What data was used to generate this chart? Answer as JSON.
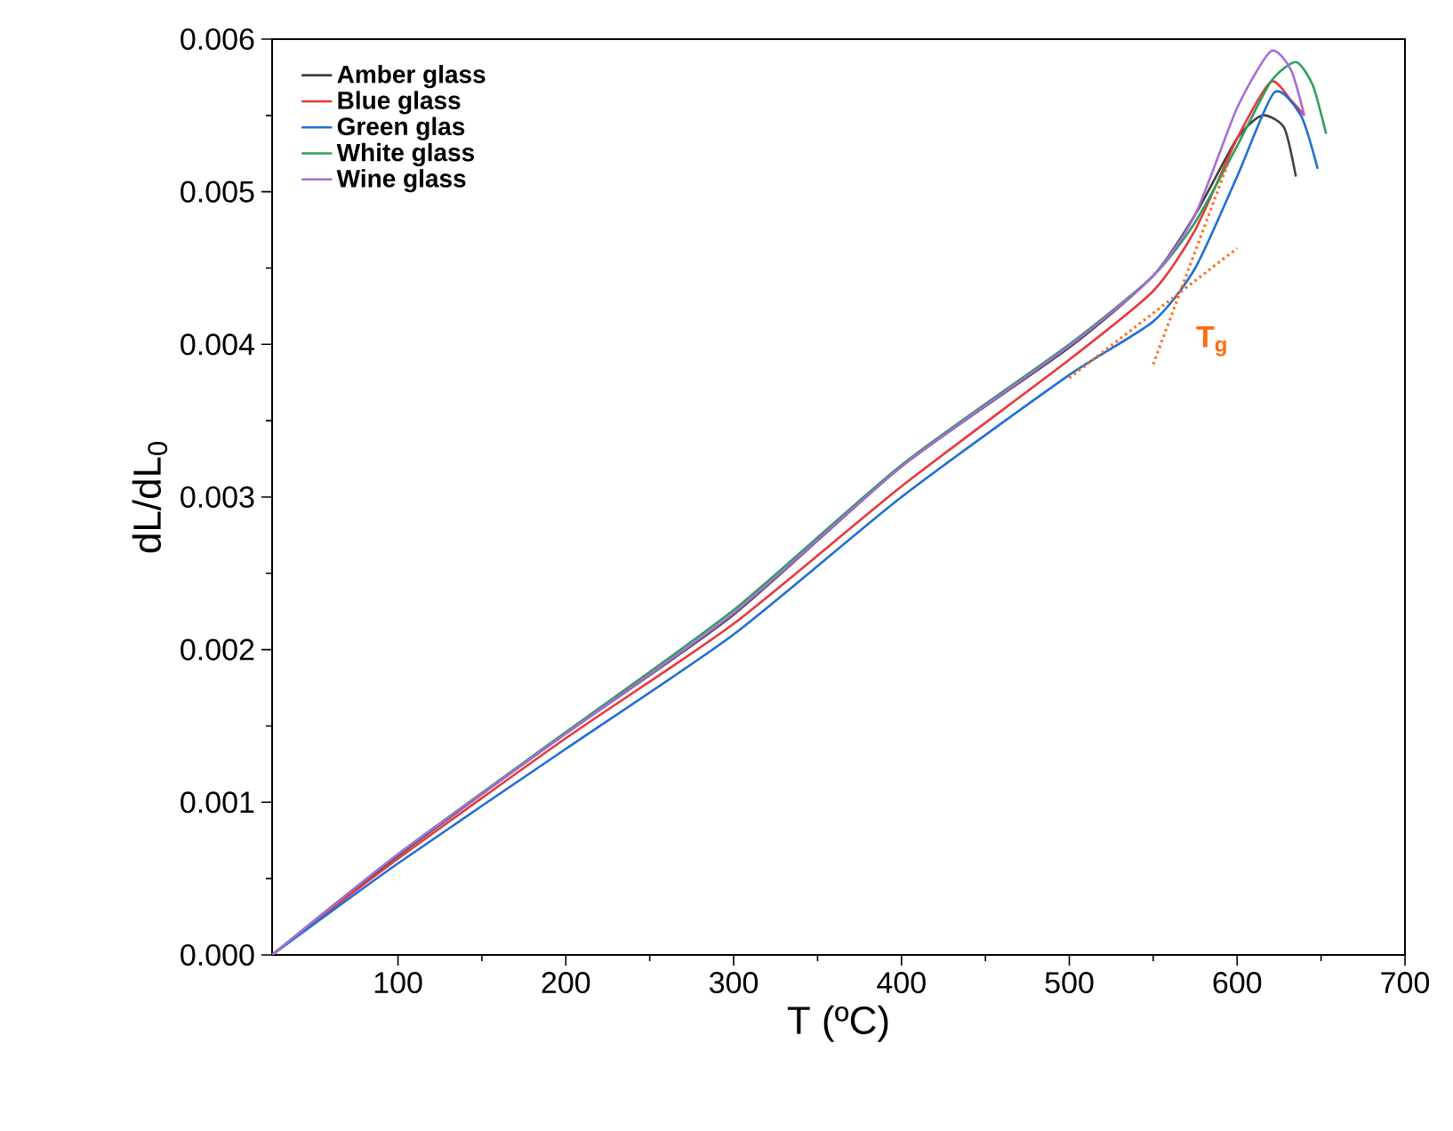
{
  "chart_data": {
    "type": "line",
    "xlabel": "T (ºC)",
    "ylabel": "dL/dL$_{0}$",
    "xlim": [
      25,
      700
    ],
    "ylim": [
      0,
      0.006
    ],
    "xticks": [
      100,
      200,
      300,
      400,
      500,
      600,
      700
    ],
    "yticks": [
      {
        "value": 0,
        "label": "0.000"
      },
      {
        "value": 0.001,
        "label": "0.001"
      },
      {
        "value": 0.002,
        "label": "0.002"
      },
      {
        "value": 0.003,
        "label": "0.003"
      },
      {
        "value": 0.004,
        "label": "0.004"
      },
      {
        "value": 0.005,
        "label": "0.005"
      },
      {
        "value": 0.006,
        "label": "0.006"
      }
    ],
    "legend": "top left",
    "marker": "none",
    "line_style": "solid",
    "grid": false,
    "series": [
      {
        "name": "Amber glass",
        "color": "#404040",
        "x": [
          25,
          100,
          200,
          300,
          400,
          500,
          550,
          575,
          600,
          615,
          628,
          635
        ],
        "values": [
          0,
          0.00065,
          0.00145,
          0.00223,
          0.0032,
          0.00398,
          0.00445,
          0.00485,
          0.00535,
          0.0055,
          0.00542,
          0.0051
        ]
      },
      {
        "name": "Blue glass",
        "color": "#e8383d",
        "x": [
          25,
          100,
          200,
          300,
          400,
          500,
          550,
          575,
          600,
          620,
          632,
          640
        ],
        "values": [
          0,
          0.00063,
          0.00142,
          0.00217,
          0.00307,
          0.0039,
          0.00435,
          0.00475,
          0.00535,
          0.00572,
          0.0056,
          0.0055
        ]
      },
      {
        "name": "Green glas",
        "color": "#1f6fd6",
        "x": [
          25,
          100,
          200,
          300,
          400,
          500,
          550,
          575,
          600,
          622,
          638,
          648
        ],
        "values": [
          0,
          0.0006,
          0.00135,
          0.0021,
          0.003,
          0.0038,
          0.00415,
          0.0045,
          0.0051,
          0.00565,
          0.0055,
          0.00515
        ]
      },
      {
        "name": "White glass",
        "color": "#2e9e5b",
        "x": [
          25,
          100,
          200,
          300,
          400,
          500,
          550,
          575,
          600,
          620,
          635,
          645,
          653
        ],
        "values": [
          0,
          0.00066,
          0.00146,
          0.00226,
          0.00321,
          0.004,
          0.00445,
          0.0048,
          0.0053,
          0.00572,
          0.00585,
          0.0057,
          0.00538
        ]
      },
      {
        "name": "Wine glass",
        "color": "#a86bd8",
        "x": [
          25,
          100,
          200,
          300,
          400,
          500,
          550,
          575,
          600,
          620,
          632,
          640
        ],
        "values": [
          0,
          0.00066,
          0.00145,
          0.00224,
          0.0032,
          0.00399,
          0.00445,
          0.00485,
          0.00555,
          0.00592,
          0.0058,
          0.0055
        ]
      },
      {
        "color": "#ff6a13",
        "line_style": "dotted",
        "x": [
          500,
          600
        ],
        "values": [
          0.00378,
          0.00463
        ]
      },
      {
        "color": "#ff6a13",
        "line_style": "dotted",
        "x": [
          550,
          595
        ],
        "values": [
          0.00387,
          0.0052
        ]
      }
    ],
    "annotations": [
      "T$_{g}$"
    ]
  }
}
